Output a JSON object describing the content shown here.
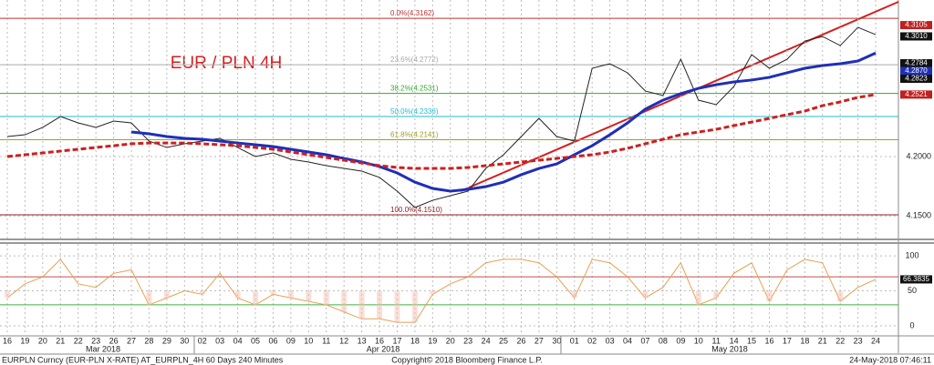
{
  "chart_data": [
    {
      "type": "line",
      "title": "EUR / PLN 4H",
      "categories": [
        "16",
        "19",
        "20",
        "21",
        "22",
        "23",
        "26",
        "27",
        "28",
        "29",
        "30",
        "02",
        "03",
        "04",
        "05",
        "06",
        "09",
        "10",
        "11",
        "12",
        "13",
        "16",
        "17",
        "18",
        "19",
        "20",
        "23",
        "24",
        "25",
        "26",
        "27",
        "30",
        "01",
        "02",
        "03",
        "04",
        "07",
        "08",
        "09",
        "10",
        "11",
        "14",
        "15",
        "16",
        "17",
        "18",
        "21",
        "22",
        "23",
        "24"
      ],
      "months": [
        "Mar 2018",
        "Apr 2018",
        "May 2018"
      ],
      "ylim": [
        4.1311,
        4.3316
      ],
      "yticks": [
        {
          "value": 4.15,
          "label": "4.1500"
        },
        {
          "value": 4.2,
          "label": "4.2000"
        }
      ],
      "grid": true,
      "series": [
        {
          "color": "#222222",
          "values": [
            4.2168,
            4.2183,
            4.2245,
            4.2336,
            4.2283,
            4.2245,
            4.2298,
            4.2283,
            4.213,
            4.2076,
            4.2107,
            4.213,
            4.2153,
            4.2076,
            4.2,
            4.203,
            4.1977,
            4.1954,
            4.1923,
            4.19,
            4.1877,
            4.1824,
            4.1709,
            4.1571,
            4.1632,
            4.1671,
            4.1709,
            4.19,
            4.2015,
            4.2168,
            4.2321,
            4.2168,
            4.213,
            4.2742,
            4.278,
            4.2704,
            4.2551,
            4.2513,
            4.2818,
            4.2474,
            4.2436,
            4.2589,
            4.2857,
            4.2742,
            4.2818,
            4.2971,
            4.3009,
            4.2933,
            4.3086,
            4.3025
          ]
        },
        {
          "color": "#1f2fb8",
          "values": [
            null,
            null,
            null,
            null,
            null,
            null,
            null,
            4.2206,
            4.2191,
            4.2168,
            4.2153,
            4.2145,
            4.213,
            4.2114,
            4.2099,
            4.2084,
            4.2061,
            4.2038,
            4.2015,
            4.1984,
            4.1954,
            4.1916,
            4.1862,
            4.1785,
            4.1732,
            4.1709,
            4.1724,
            4.1747,
            4.1785,
            4.1847,
            4.19,
            4.1938,
            4.2015,
            4.2091,
            4.2183,
            4.2283,
            4.2398,
            4.2474,
            4.2528,
            4.2573,
            4.2604,
            4.2627,
            4.2643,
            4.2666,
            4.2704,
            4.2742,
            4.2765,
            4.278,
            4.2803,
            4.287
          ]
        },
        {
          "color": "#cc2020",
          "dashed": true,
          "values": [
            4.2,
            4.2015,
            4.203,
            4.2046,
            4.2061,
            4.2076,
            4.2091,
            4.2107,
            4.2114,
            4.2114,
            4.2114,
            4.2107,
            4.2099,
            4.2091,
            4.2076,
            4.2061,
            4.2038,
            4.2015,
            4.1992,
            4.1969,
            4.1946,
            4.1923,
            4.1908,
            4.19,
            4.19,
            4.19,
            4.1908,
            4.1923,
            4.1938,
            4.1954,
            4.1969,
            4.1984,
            4.2,
            4.2015,
            4.2038,
            4.2069,
            4.2107,
            4.2145,
            4.2183,
            4.2206,
            4.2229,
            4.226,
            4.229,
            4.2321,
            4.2352,
            4.2382,
            4.2428,
            4.2459,
            4.2497,
            4.2521
          ]
        }
      ],
      "fib_levels": [
        {
          "label": "0.0%(4.3162)",
          "value": 4.3162,
          "color": "#c03030"
        },
        {
          "label": "23.6%(4.2772)",
          "value": 4.2772,
          "color": "#aaaaaa"
        },
        {
          "label": "38.2%(4.2531)",
          "value": 4.2531,
          "color": "#33aa33"
        },
        {
          "label": "50.0%(4.2336)",
          "value": 4.2336,
          "color": "#22bbcc"
        },
        {
          "label": "61.8%(4.2141)",
          "value": 4.2141,
          "color": "#a0a020"
        },
        {
          "label": "100.0%(4.1510)",
          "value": 4.151,
          "color": "#902020"
        }
      ],
      "price_labels": [
        {
          "value": 4.3105,
          "label": "4.3105",
          "color": "#c02020"
        },
        {
          "value": 4.301,
          "label": "4.3010",
          "color": "#111111"
        },
        {
          "value": 4.2784,
          "label": "4.2784",
          "color": "#111111"
        },
        {
          "value": 4.287,
          "label": "4.2870",
          "color": "#1f2fb8"
        },
        {
          "value": 4.2823,
          "label": "4.2823",
          "color": "#111111"
        },
        {
          "value": 4.2521,
          "label": "4.2521",
          "color": "#c02020"
        }
      ]
    },
    {
      "type": "line",
      "ylim": [
        -13,
        117
      ],
      "yticks": [
        0,
        50,
        100
      ],
      "levels": [
        {
          "value": 70,
          "color": "#c05050"
        },
        {
          "value": 30,
          "color": "#40b040"
        }
      ],
      "series": [
        {
          "color": "#e8a050",
          "values": [
            40,
            60,
            70,
            95,
            60,
            55,
            75,
            80,
            30,
            40,
            50,
            45,
            75,
            40,
            30,
            45,
            40,
            35,
            30,
            20,
            10,
            10,
            5,
            5,
            45,
            60,
            70,
            90,
            95,
            95,
            90,
            70,
            40,
            95,
            90,
            70,
            40,
            55,
            90,
            30,
            40,
            75,
            90,
            35,
            80,
            95,
            90,
            35,
            55,
            66.3835
          ]
        }
      ],
      "last_label": {
        "value": 66.3835,
        "label": "66.3835"
      }
    }
  ],
  "footer": {
    "left": "EURPLN Curncy (EUR-PLN X-RATE) AT_EURPLN_4H 60 Days 240 Minutes",
    "center": "Copyright© 2018 Bloomberg Finance L.P.",
    "right": "24-May-2018 07:46:11"
  }
}
